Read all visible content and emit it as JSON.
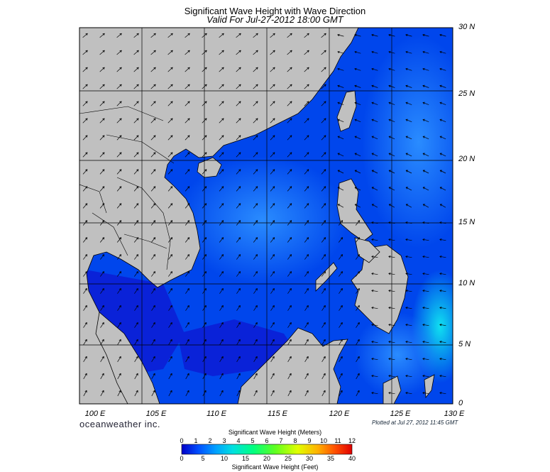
{
  "title": "Significant Wave Height with Wave Direction",
  "subtitle": "Valid For Jul-27-2012 18:00 GMT",
  "lat_labels": [
    "30 N",
    "25 N",
    "20 N",
    "15 N",
    "10 N",
    "5 N",
    "0"
  ],
  "lon_labels": [
    "100 E",
    "105 E",
    "110 E",
    "115 E",
    "120 E",
    "125 E",
    "130 E"
  ],
  "brand": "oceanweather inc.",
  "plotted": "Plotted at Jul 27, 2012 11:45 GMT",
  "colorbar": {
    "title_meters": "Significant Wave Height (Meters)",
    "title_feet": "Significant Wave Height (Feet)",
    "meters_ticks": [
      "0",
      "1",
      "2",
      "3",
      "4",
      "5",
      "6",
      "7",
      "8",
      "9",
      "10",
      "11",
      "12"
    ],
    "feet_ticks": [
      "0",
      "5",
      "10",
      "15",
      "20",
      "25",
      "30",
      "35",
      "40"
    ],
    "colors": [
      "#0000c8",
      "#0020ff",
      "#0070ff",
      "#00b0ff",
      "#00e0e0",
      "#00ffa0",
      "#40ff40",
      "#a0ff00",
      "#e0ff00",
      "#ffe000",
      "#ffa000",
      "#ff5000",
      "#e00000"
    ]
  },
  "colors": {
    "land": "#c0c0c0",
    "sea_deep": "#0018d8",
    "sea_mid": "#0050f0",
    "sea_light": "#1a8cff",
    "arrow": "#000000"
  }
}
